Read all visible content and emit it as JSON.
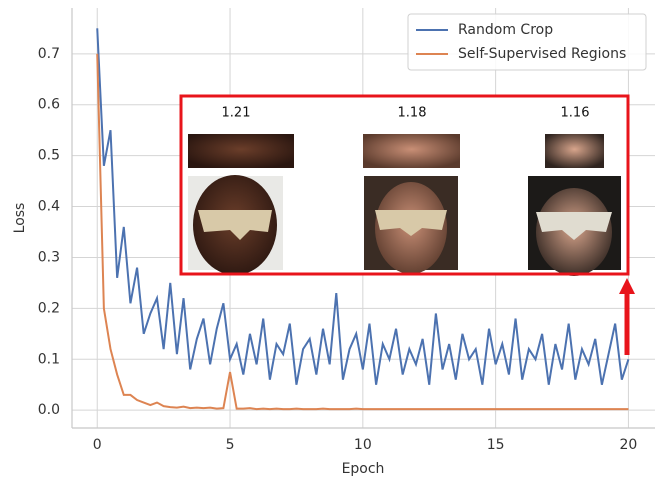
{
  "chart_data": {
    "type": "line",
    "xlabel": "Epoch",
    "ylabel": "Loss",
    "x": [
      0,
      0.25,
      0.5,
      0.75,
      1,
      1.25,
      1.5,
      1.75,
      2,
      2.25,
      2.5,
      2.75,
      3,
      3.25,
      3.5,
      3.75,
      4,
      4.25,
      4.5,
      4.75,
      5,
      5.25,
      5.5,
      5.75,
      6,
      6.25,
      6.5,
      6.75,
      7,
      7.25,
      7.5,
      7.75,
      8,
      8.25,
      8.5,
      8.75,
      9,
      9.25,
      9.5,
      9.75,
      10,
      10.25,
      10.5,
      10.75,
      11,
      11.25,
      11.5,
      11.75,
      12,
      12.25,
      12.5,
      12.75,
      13,
      13.25,
      13.5,
      13.75,
      14,
      14.25,
      14.5,
      14.75,
      15,
      15.25,
      15.5,
      15.75,
      16,
      16.25,
      16.5,
      16.75,
      17,
      17.25,
      17.5,
      17.75,
      18,
      18.25,
      18.5,
      18.75,
      19,
      19.25,
      19.5,
      19.75,
      20
    ],
    "series": [
      {
        "name": "Random Crop",
        "color": "#4c72b0",
        "values": [
          0.75,
          0.48,
          0.55,
          0.26,
          0.36,
          0.21,
          0.28,
          0.15,
          0.19,
          0.22,
          0.12,
          0.25,
          0.11,
          0.22,
          0.08,
          0.14,
          0.18,
          0.09,
          0.16,
          0.21,
          0.1,
          0.13,
          0.07,
          0.15,
          0.09,
          0.18,
          0.06,
          0.13,
          0.11,
          0.17,
          0.05,
          0.12,
          0.14,
          0.07,
          0.16,
          0.09,
          0.23,
          0.06,
          0.12,
          0.15,
          0.08,
          0.17,
          0.05,
          0.13,
          0.1,
          0.16,
          0.07,
          0.12,
          0.09,
          0.14,
          0.05,
          0.19,
          0.08,
          0.13,
          0.06,
          0.15,
          0.1,
          0.12,
          0.05,
          0.16,
          0.09,
          0.13,
          0.07,
          0.18,
          0.06,
          0.12,
          0.1,
          0.15,
          0.05,
          0.13,
          0.08,
          0.17,
          0.06,
          0.12,
          0.09,
          0.14,
          0.05,
          0.11,
          0.17,
          0.06,
          0.1
        ]
      },
      {
        "name": "Self-Supervised Regions",
        "color": "#dd8452",
        "values": [
          0.7,
          0.2,
          0.12,
          0.07,
          0.03,
          0.03,
          0.02,
          0.015,
          0.01,
          0.015,
          0.008,
          0.006,
          0.005,
          0.007,
          0.004,
          0.005,
          0.004,
          0.005,
          0.003,
          0.004,
          0.075,
          0.003,
          0.003,
          0.004,
          0.002,
          0.003,
          0.002,
          0.003,
          0.002,
          0.002,
          0.003,
          0.002,
          0.002,
          0.002,
          0.003,
          0.002,
          0.002,
          0.002,
          0.002,
          0.003,
          0.002,
          0.002,
          0.002,
          0.002,
          0.002,
          0.002,
          0.002,
          0.002,
          0.002,
          0.002,
          0.002,
          0.002,
          0.002,
          0.002,
          0.002,
          0.002,
          0.002,
          0.002,
          0.002,
          0.002,
          0.002,
          0.002,
          0.002,
          0.002,
          0.002,
          0.002,
          0.002,
          0.002,
          0.002,
          0.002,
          0.002,
          0.002,
          0.002,
          0.002,
          0.002,
          0.002,
          0.002,
          0.002,
          0.002,
          0.002,
          0.002
        ]
      }
    ],
    "xlim": [
      -0.95,
      21
    ],
    "ylim": [
      -0.035,
      0.79
    ],
    "xticks": [
      0,
      5,
      10,
      15,
      20
    ],
    "yticks": [
      {
        "value": 0,
        "label": "0.0"
      },
      0.1,
      0.2,
      0.3,
      0.4,
      0.5,
      0.6,
      0.7
    ],
    "grid": true,
    "legend": "upper right",
    "annotations": [
      "1.21",
      "1.18",
      "1.16"
    ]
  }
}
